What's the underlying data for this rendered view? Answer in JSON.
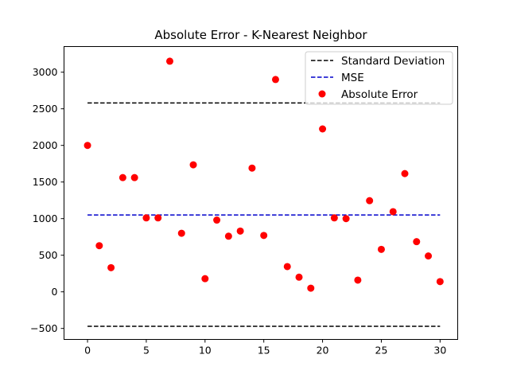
{
  "chart_data": {
    "type": "scatter",
    "title": "Absolute Error - K-Nearest Neighbor",
    "xlabel": "",
    "ylabel": "",
    "xlim": [
      -2,
      31.5
    ],
    "ylim": [
      -650,
      3350
    ],
    "x_ticks": [
      0,
      5,
      10,
      15,
      20,
      25,
      30
    ],
    "x_tick_labels": [
      "0",
      "5",
      "10",
      "15",
      "20",
      "25",
      "30"
    ],
    "y_ticks": [
      -500,
      0,
      500,
      1000,
      1500,
      2000,
      2500,
      3000
    ],
    "y_tick_labels": [
      "−500",
      "0",
      "500",
      "1000",
      "1500",
      "2000",
      "2500",
      "3000"
    ],
    "grid": false,
    "legend_position": "top-right",
    "legend": [
      {
        "label": "Standard Deviation",
        "kind": "line",
        "color": "#000000",
        "dash": "dashed"
      },
      {
        "label": "MSE",
        "kind": "line",
        "color": "#0000cc",
        "dash": "dashed"
      },
      {
        "label": "Absolute Error",
        "kind": "marker",
        "color": "#ff0000"
      }
    ],
    "hlines": [
      {
        "name": "std_upper",
        "y": 2580,
        "x_range": [
          0,
          30
        ],
        "color": "#000000"
      },
      {
        "name": "mse",
        "y": 1050,
        "x_range": [
          0,
          30
        ],
        "color": "#0000cc"
      },
      {
        "name": "std_lower",
        "y": -470,
        "x_range": [
          0,
          30
        ],
        "color": "#000000"
      }
    ],
    "series": [
      {
        "color": "#ff0000",
        "x": [
          0,
          1,
          2,
          3,
          4,
          5,
          6,
          7,
          8,
          9,
          10,
          11,
          12,
          13,
          14,
          15,
          16,
          17,
          18,
          19,
          20,
          21,
          22,
          23,
          24,
          25,
          26,
          27,
          28,
          29,
          30
        ],
        "y": [
          2000,
          630,
          330,
          1560,
          1560,
          1010,
          1010,
          3150,
          800,
          1735,
          180,
          980,
          760,
          830,
          1690,
          770,
          2900,
          345,
          200,
          50,
          2225,
          1010,
          1000,
          160,
          1245,
          580,
          1095,
          1615,
          685,
          490,
          140
        ]
      }
    ]
  }
}
